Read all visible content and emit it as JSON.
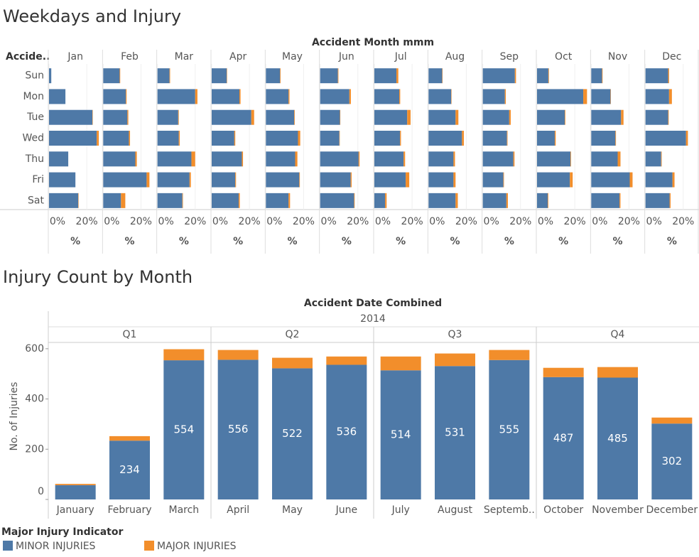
{
  "chart_data": [
    {
      "type": "bar",
      "orientation": "horizontal",
      "stacked": true,
      "title": "Weekdays and Injury",
      "column_title": "Accident Month mmm",
      "row_title": "Accide..",
      "panels": [
        "Jan",
        "Feb",
        "Mar",
        "Apr",
        "May",
        "Jun",
        "Jul",
        "Aug",
        "Sep",
        "Oct",
        "Nov",
        "Dec"
      ],
      "categories": [
        "Sun",
        "Mon",
        "Tue",
        "Wed",
        "Thu",
        "Fri",
        "Sat"
      ],
      "series": [
        {
          "color": "#4e79a7",
          "values": [
            [
              1.2,
              8.7,
              23,
              25.3,
              10.2,
              14,
              15.5
            ],
            [
              8.7,
              12,
              12.8,
              13.6,
              17,
              23,
              9.4
            ],
            [
              6.4,
              20,
              11,
              11.3,
              18,
              17,
              13.2
            ],
            [
              8,
              14.7,
              21,
              12,
              16,
              12.5,
              14.3
            ],
            [
              7.5,
              12,
              15,
              17,
              15.5,
              17.7,
              12
            ],
            [
              9.4,
              15.5,
              10.5,
              10.2,
              20.4,
              16.2,
              18
            ],
            [
              11.7,
              13.2,
              17.4,
              13.6,
              15.5,
              16.6,
              5.7
            ],
            [
              7.2,
              12,
              14.3,
              17.7,
              13.2,
              13.2,
              14.3
            ],
            [
              17,
              11.7,
              14,
              12.8,
              16.2,
              10.9,
              12.5
            ],
            [
              6,
              24.5,
              14.7,
              9.4,
              17.7,
              17.4,
              5.7
            ],
            [
              5.7,
              10.2,
              15.8,
              12.8,
              14,
              20.4,
              15
            ],
            [
              12,
              12.5,
              12,
              21.5,
              8.3,
              14.3,
              12.8
            ]
          ]
        },
        {
          "color": "#f28e2b",
          "values": [
            [
              0,
              0,
              0.2,
              1.1,
              0,
              0,
              0.2
            ],
            [
              0.3,
              0.4,
              0.5,
              0.6,
              0.8,
              1.5,
              2.3
            ],
            [
              0.3,
              1.2,
              0.3,
              0.5,
              2,
              0.7,
              0.3
            ],
            [
              0.2,
              0.6,
              1.5,
              0.5,
              0.6,
              0.4,
              0.6
            ],
            [
              0.3,
              0.5,
              0.3,
              1.2,
              1.2,
              0.3,
              0.8
            ],
            [
              0.3,
              0.8,
              0.2,
              0.2,
              0.5,
              0.5,
              0.3
            ],
            [
              1,
              0.5,
              1.8,
              0.5,
              0.8,
              1.9,
              0.8
            ],
            [
              0.2,
              0.2,
              1.5,
              1,
              0.8,
              1.1,
              1.2
            ],
            [
              0.6,
              0.5,
              0.8,
              0.3,
              0.6,
              0.3,
              0.8
            ],
            [
              0.3,
              2,
              0.3,
              0.5,
              0.3,
              1.5,
              0.3
            ],
            [
              0.3,
              0.2,
              1.3,
              0.3,
              1.5,
              1.5,
              0.5
            ],
            [
              0.5,
              1.5,
              0.3,
              1,
              0.3,
              1.1,
              0.5
            ]
          ]
        }
      ],
      "xlim": [
        0,
        28
      ],
      "xticks": [
        {
          "value": 0,
          "label": "0%"
        },
        {
          "value": 20,
          "label": "20%"
        }
      ],
      "xlabel": "%"
    },
    {
      "type": "bar",
      "orientation": "vertical",
      "stacked": true,
      "title": "Injury Count by Month",
      "column_title": "Accident Date Combined",
      "year": "2014",
      "quarters": [
        "Q1",
        "Q2",
        "Q3",
        "Q4"
      ],
      "categories": [
        "January",
        "February",
        "March",
        "April",
        "May",
        "June",
        "July",
        "August",
        "Septemb..",
        "October",
        "November",
        "December"
      ],
      "series": [
        {
          "name": "MINOR INJURIES",
          "color": "#4e79a7",
          "values": [
            57,
            234,
            554,
            556,
            522,
            536,
            514,
            531,
            555,
            487,
            485,
            302
          ]
        },
        {
          "name": "MAJOR INJURIES",
          "color": "#f28e2b",
          "values": [
            5,
            18,
            44,
            39,
            42,
            33,
            55,
            50,
            40,
            37,
            42,
            24
          ]
        }
      ],
      "ylabel": "No. of Injuries",
      "ylim": [
        0,
        625
      ],
      "yticks": [
        0,
        200,
        400,
        600
      ],
      "legend_title": "Major Injury Indicator"
    }
  ]
}
